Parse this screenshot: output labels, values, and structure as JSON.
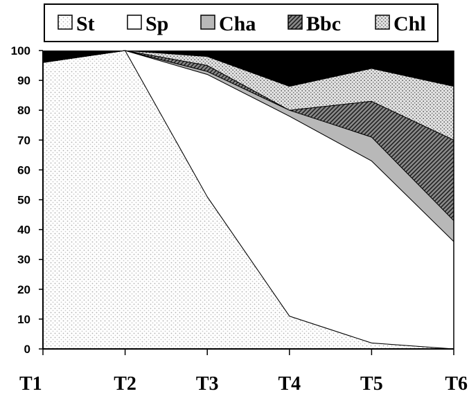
{
  "chart_data": {
    "type": "area",
    "stacked": true,
    "categories": [
      "T1",
      "T2",
      "T3",
      "T4",
      "T5",
      "T6"
    ],
    "ylim": [
      0,
      100
    ],
    "yticks": [
      "0",
      "10",
      "20",
      "30",
      "40",
      "50",
      "60",
      "70",
      "80",
      "90",
      "100"
    ],
    "legend_position": "top",
    "grid": false,
    "series": [
      {
        "name": "St",
        "values": [
          96,
          100,
          51,
          11,
          2,
          0
        ],
        "pattern": "dots-light"
      },
      {
        "name": "Sp",
        "values": [
          0,
          0,
          41,
          67,
          61,
          36
        ],
        "pattern": "white"
      },
      {
        "name": "Cha",
        "values": [
          0,
          0,
          1,
          2,
          8,
          7
        ],
        "pattern": "gray"
      },
      {
        "name": "Bbc",
        "values": [
          0,
          0,
          2,
          0,
          12,
          27
        ],
        "pattern": "hatch"
      },
      {
        "name": "Chl",
        "values": [
          0,
          0,
          3,
          8,
          11,
          18
        ],
        "pattern": "dots-dense"
      }
    ],
    "remainder_fill": "#000000"
  }
}
